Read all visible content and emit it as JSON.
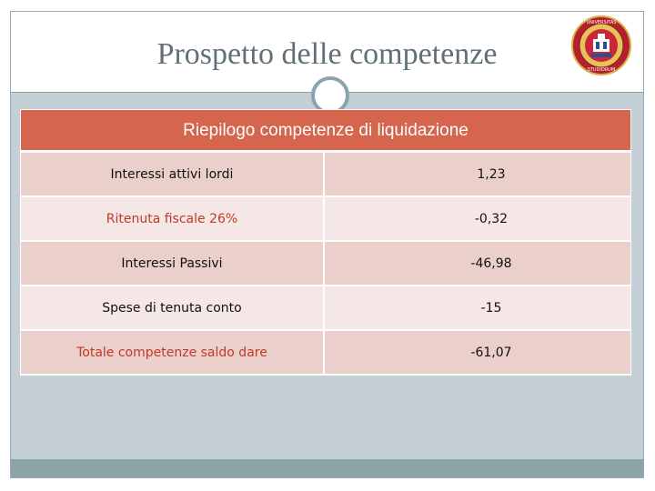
{
  "slide": {
    "title": "Prospetto delle competenze"
  },
  "seal": {
    "text": "UNIVERSITAS STUDIORUM"
  },
  "table": {
    "header": "Riepilogo competenze di liquidazione",
    "rows": [
      {
        "label": "Interessi attivi lordi",
        "value": "1,23"
      },
      {
        "label": "Ritenuta fiscale 26%",
        "value": "-0,32",
        "highlight": true
      },
      {
        "label": "Interessi Passivi",
        "value": "-46,98"
      },
      {
        "label": "Spese di tenuta conto",
        "value": "-15"
      },
      {
        "label": "Totale competenze saldo dare",
        "value": "-61,07",
        "highlight": true
      }
    ]
  },
  "colors": {
    "header": "#d5654d",
    "row_dark": "#ebcfcb",
    "row_light": "#f5e7e5",
    "highlight_text": "#c0392b"
  }
}
